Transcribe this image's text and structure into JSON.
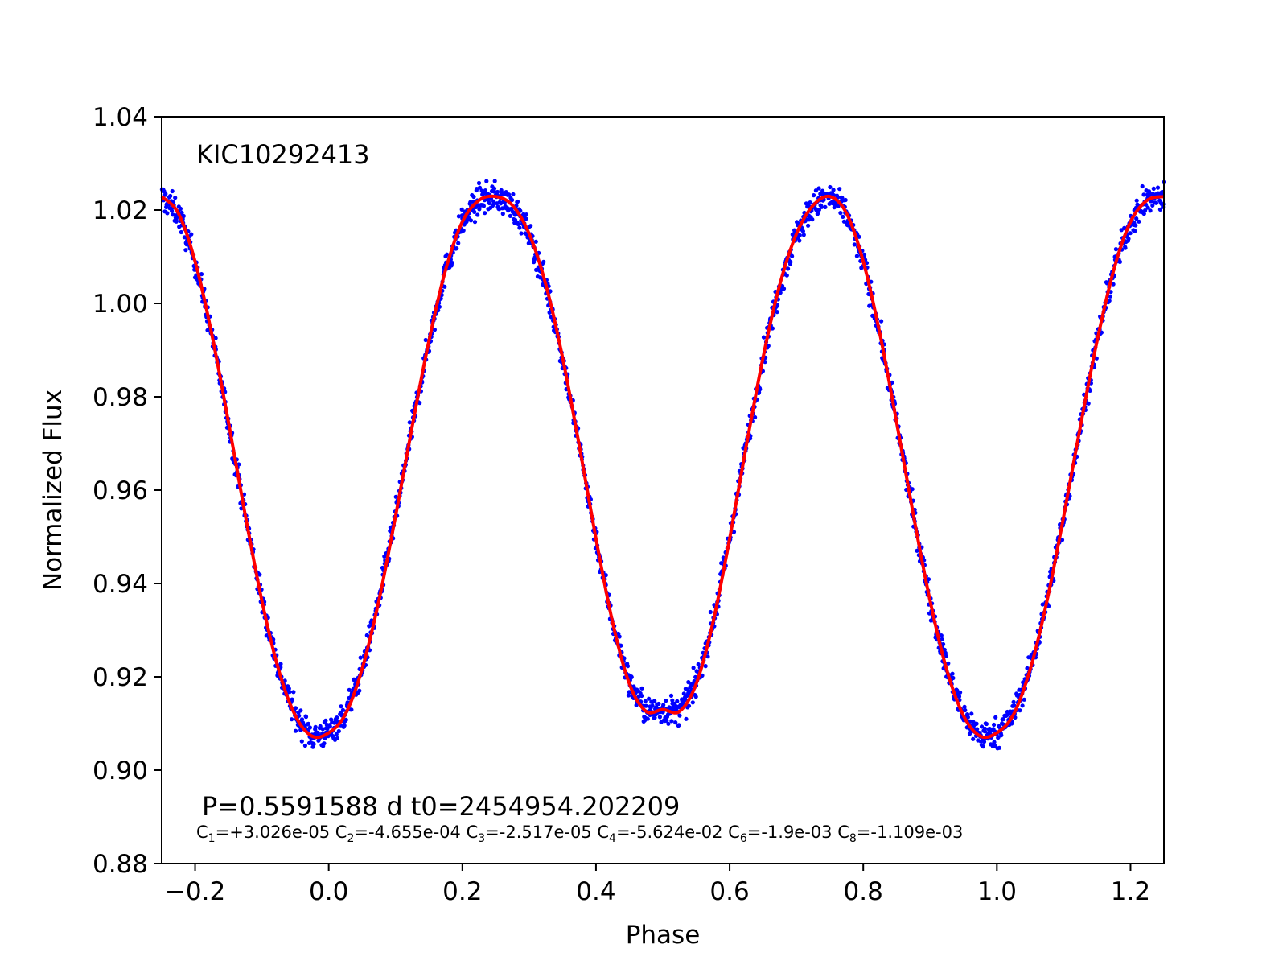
{
  "chart_data": {
    "type": "scatter",
    "title": "",
    "xlabel": "Phase",
    "ylabel": "Normalized Flux",
    "xlim": [
      -0.25,
      1.25
    ],
    "ylim": [
      0.88,
      1.04
    ],
    "xticks": [
      -0.2,
      0.0,
      0.2,
      0.4,
      0.6,
      0.8,
      1.0,
      1.2
    ],
    "xtick_labels": [
      "−0.2",
      "0.0",
      "0.2",
      "0.4",
      "0.6",
      "0.8",
      "1.0",
      "1.2"
    ],
    "yticks": [
      0.88,
      0.9,
      0.92,
      0.94,
      0.96,
      0.98,
      1.0,
      1.02,
      1.04
    ],
    "ytick_labels": [
      "0.88",
      "0.90",
      "0.92",
      "0.94",
      "0.96",
      "0.98",
      "1.00",
      "1.02",
      "1.04"
    ],
    "grid": false,
    "legend": "none",
    "colors": {
      "points": "#0000ff",
      "model": "#ff0000",
      "axes": "#000000"
    },
    "annotations": {
      "star_id": "KIC10292413",
      "ephemeris": "P=0.5591588 d  t0=2454954.202209",
      "coefficients": [
        {
          "name": "C",
          "sub": "1",
          "value": "=+3.026e-05"
        },
        {
          "name": "C",
          "sub": "2",
          "value": "=-4.655e-04"
        },
        {
          "name": "C",
          "sub": "3",
          "value": "=-2.517e-05"
        },
        {
          "name": "C",
          "sub": "4",
          "value": "=-5.624e-02"
        },
        {
          "name": "C",
          "sub": "6",
          "value": "=-1.9e-03"
        },
        {
          "name": "C",
          "sub": "8",
          "value": "=-1.109e-03"
        }
      ]
    },
    "series": [
      {
        "type": "scatter",
        "color": "#0000ff",
        "scatter_halfwidth": 0.002,
        "x": [
          -0.25,
          -0.225,
          -0.2,
          -0.175,
          -0.15,
          -0.125,
          -0.1,
          -0.075,
          -0.05,
          -0.025,
          0.0,
          0.025,
          0.05,
          0.075,
          0.1,
          0.125,
          0.15,
          0.175,
          0.2,
          0.225,
          0.25,
          0.275,
          0.3,
          0.325,
          0.35,
          0.375,
          0.4,
          0.425,
          0.45,
          0.475,
          0.5,
          0.525,
          0.55,
          0.575,
          0.6,
          0.625,
          0.65,
          0.675,
          0.7,
          0.725,
          0.75,
          0.775,
          0.8,
          0.825,
          0.85,
          0.875,
          0.9,
          0.925,
          0.95,
          0.975,
          1.0,
          1.025,
          1.05,
          1.075,
          1.1,
          1.125,
          1.15,
          1.175,
          1.2,
          1.225,
          1.25
        ],
        "y": [
          1.0229,
          1.0193,
          1.009,
          0.9934,
          0.9745,
          0.9547,
          0.9363,
          0.9215,
          0.9117,
          0.9073,
          0.908,
          0.912,
          0.9217,
          0.9363,
          0.9544,
          0.9737,
          0.992,
          1.0072,
          1.0175,
          1.0221,
          1.0229,
          1.021,
          1.0149,
          1.004,
          0.9884,
          0.9695,
          0.9496,
          0.9316,
          0.9185,
          0.9126,
          0.913,
          0.9126,
          0.9185,
          0.9316,
          0.9496,
          0.9695,
          0.9884,
          1.004,
          1.0149,
          1.021,
          1.0229,
          1.0193,
          1.009,
          0.9934,
          0.9745,
          0.9547,
          0.9363,
          0.9215,
          0.9117,
          0.9073,
          0.908,
          0.912,
          0.9217,
          0.9363,
          0.9544,
          0.9737,
          0.992,
          1.0072,
          1.0175,
          1.0221,
          1.0229
        ]
      },
      {
        "type": "line",
        "color": "#ff0000",
        "x": [
          -0.25,
          -0.225,
          -0.2,
          -0.175,
          -0.15,
          -0.125,
          -0.1,
          -0.075,
          -0.05,
          -0.025,
          0.0,
          0.025,
          0.05,
          0.075,
          0.1,
          0.125,
          0.15,
          0.175,
          0.2,
          0.225,
          0.25,
          0.275,
          0.3,
          0.325,
          0.35,
          0.375,
          0.4,
          0.425,
          0.45,
          0.475,
          0.5,
          0.525,
          0.55,
          0.575,
          0.6,
          0.625,
          0.65,
          0.675,
          0.7,
          0.725,
          0.75,
          0.775,
          0.8,
          0.825,
          0.85,
          0.875,
          0.9,
          0.925,
          0.95,
          0.975,
          1.0,
          1.025,
          1.05,
          1.075,
          1.1,
          1.125,
          1.15,
          1.175,
          1.2,
          1.225,
          1.25
        ],
        "y": [
          1.0229,
          1.0193,
          1.009,
          0.9934,
          0.9745,
          0.9547,
          0.9363,
          0.9215,
          0.9117,
          0.9073,
          0.908,
          0.912,
          0.9217,
          0.9363,
          0.9544,
          0.9737,
          0.992,
          1.0072,
          1.0175,
          1.0221,
          1.0229,
          1.021,
          1.0149,
          1.004,
          0.9884,
          0.9695,
          0.9496,
          0.9316,
          0.9185,
          0.9126,
          0.913,
          0.9126,
          0.9185,
          0.9316,
          0.9496,
          0.9695,
          0.9884,
          1.004,
          1.0149,
          1.021,
          1.0229,
          1.0193,
          1.009,
          0.9934,
          0.9745,
          0.9547,
          0.9363,
          0.9215,
          0.9117,
          0.9073,
          0.908,
          0.912,
          0.9217,
          0.9363,
          0.9544,
          0.9737,
          0.992,
          1.0072,
          1.0175,
          1.0221,
          1.0229
        ]
      }
    ]
  }
}
